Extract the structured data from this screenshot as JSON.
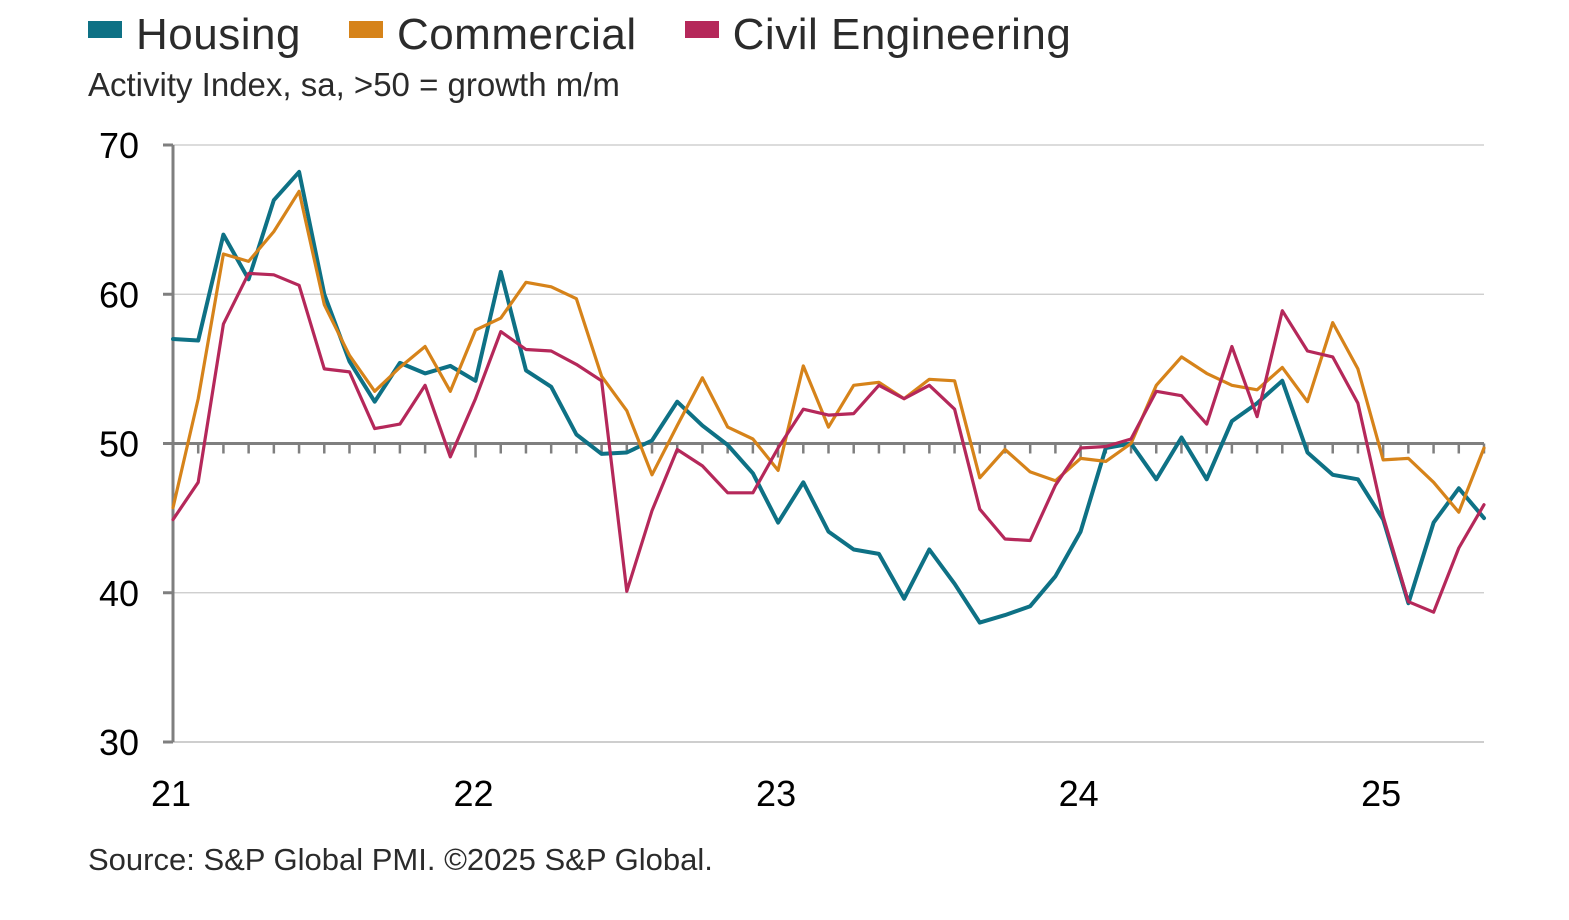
{
  "legend": [
    {
      "label": "Housing",
      "color": "#0e7185"
    },
    {
      "label": "Commercial",
      "color": "#d6831a"
    },
    {
      "label": "Civil Engineering",
      "color": "#b5285a"
    }
  ],
  "subtitle": "Activity Index, sa, >50 = growth m/m",
  "source": "Source: S&P Global PMI. ©2025 S&P Global.",
  "chart_data": {
    "type": "line",
    "title": "",
    "xlabel": "",
    "ylabel": "Activity Index, sa, >50 = growth m/m",
    "ylim": [
      30,
      70
    ],
    "yticks": [
      30,
      40,
      50,
      60,
      70
    ],
    "x_ticks": [
      {
        "label": "21",
        "index": 0
      },
      {
        "label": "22",
        "index": 12
      },
      {
        "label": "23",
        "index": 24
      },
      {
        "label": "24",
        "index": 36
      },
      {
        "label": "25",
        "index": 48
      }
    ],
    "x_start": "2021-01",
    "reference_line": 50,
    "grid": true,
    "legend_position": "top-left",
    "series": [
      {
        "name": "Housing",
        "color": "#0e7185",
        "values": [
          57.0,
          56.9,
          64.0,
          61.0,
          66.3,
          68.2,
          60.0,
          55.5,
          52.8,
          55.4,
          54.7,
          55.2,
          54.2,
          61.5,
          54.9,
          53.8,
          50.6,
          49.3,
          49.4,
          50.2,
          52.8,
          51.2,
          49.9,
          48.0,
          44.7,
          47.4,
          44.1,
          42.9,
          42.6,
          39.6,
          42.9,
          40.6,
          38.0,
          38.5,
          39.1,
          41.1,
          44.1,
          49.7,
          50.0,
          47.6,
          50.4,
          47.6,
          51.5,
          52.7,
          54.2,
          49.4,
          47.9,
          47.6,
          44.9,
          39.3,
          44.7,
          47.0,
          45.0
        ]
      },
      {
        "name": "Commercial",
        "color": "#d6831a",
        "values": [
          45.7,
          53.0,
          62.7,
          62.2,
          64.2,
          66.9,
          59.3,
          55.9,
          53.5,
          55.1,
          56.5,
          53.5,
          57.6,
          58.4,
          60.8,
          60.5,
          59.7,
          54.5,
          52.2,
          47.9,
          51.2,
          54.4,
          51.1,
          50.3,
          48.2,
          55.2,
          51.1,
          53.9,
          54.1,
          53.0,
          54.3,
          54.2,
          47.7,
          49.6,
          48.1,
          47.5,
          49.0,
          48.8,
          50.0,
          53.9,
          55.8,
          54.7,
          53.9,
          53.6,
          55.1,
          52.8,
          58.1,
          55.0,
          48.9,
          49.0,
          47.4,
          45.4,
          49.7
        ]
      },
      {
        "name": "Civil Engineering",
        "color": "#b5285a",
        "values": [
          44.9,
          47.4,
          58.0,
          61.4,
          61.3,
          60.6,
          55.0,
          54.8,
          51.0,
          51.3,
          53.9,
          49.1,
          53.0,
          57.5,
          56.3,
          56.2,
          55.3,
          54.2,
          40.1,
          45.5,
          49.6,
          48.5,
          46.7,
          46.7,
          49.7,
          52.3,
          51.9,
          52.0,
          53.9,
          53.0,
          53.9,
          52.3,
          45.6,
          43.6,
          43.5,
          47.2,
          49.7,
          49.8,
          50.3,
          53.5,
          53.2,
          51.3,
          56.5,
          51.8,
          58.9,
          56.2,
          55.8,
          52.7,
          45.1,
          39.4,
          38.7,
          43.0,
          45.9
        ]
      }
    ]
  }
}
